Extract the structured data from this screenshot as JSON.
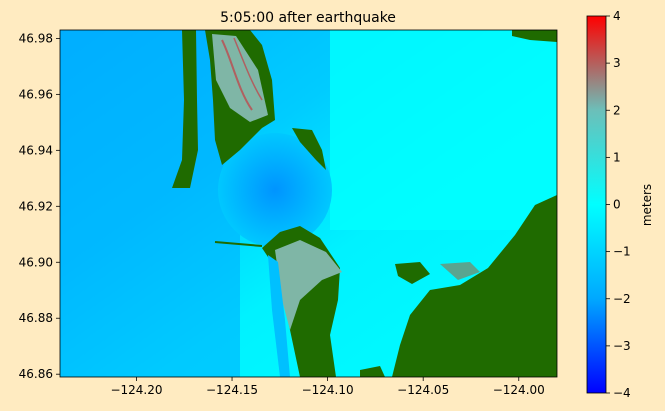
{
  "chart_data": {
    "type": "heatmap",
    "title": "5:05:00 after earthquake",
    "xlabel": "",
    "ylabel": "",
    "xlim": [
      -124.24,
      -123.98
    ],
    "ylim": [
      46.859,
      46.983
    ],
    "xticks": [
      -124.2,
      -124.15,
      -124.1,
      -124.05,
      -124.0
    ],
    "xtick_labels": [
      "−124.20",
      "−124.15",
      "−124.10",
      "−124.05",
      "−124.00"
    ],
    "yticks": [
      46.86,
      46.88,
      46.9,
      46.92,
      46.94,
      46.96,
      46.98
    ],
    "ytick_labels": [
      "46.86",
      "46.88",
      "46.90",
      "46.92",
      "46.94",
      "46.96",
      "46.98"
    ],
    "colorbar": {
      "label": "meters",
      "range": [
        -4,
        4
      ],
      "ticks": [
        4,
        3,
        2,
        1,
        0,
        -1,
        -2,
        -3,
        -4
      ],
      "tick_labels": [
        "4",
        "3",
        "2",
        "1",
        "0",
        "−1",
        "−2",
        "−3",
        "−4"
      ],
      "colors": [
        "#0000ff",
        "#00a8ff",
        "#00ffff",
        "#6cbfb9",
        "#ff0000"
      ]
    },
    "land_color": "#1f6b00"
  }
}
